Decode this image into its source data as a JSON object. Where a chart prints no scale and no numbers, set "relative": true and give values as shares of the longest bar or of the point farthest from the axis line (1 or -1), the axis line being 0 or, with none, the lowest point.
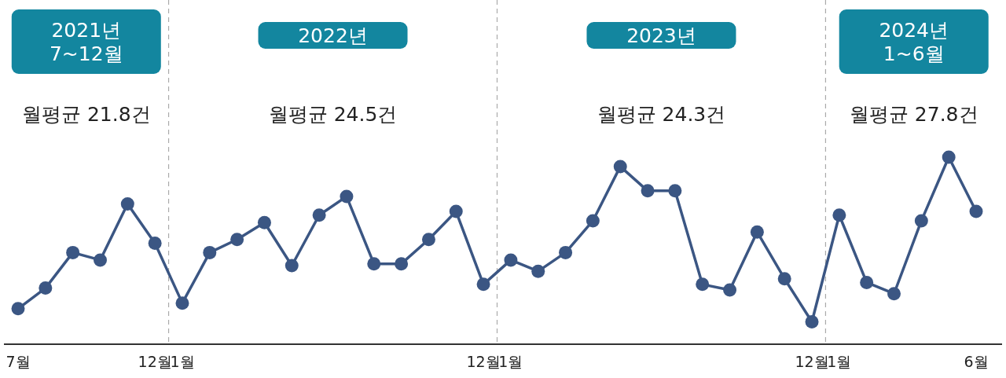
{
  "chart_data": {
    "type": "line",
    "relative": true,
    "color": "#3b5683",
    "marker": "circle",
    "line_style": "solid",
    "categories": [
      "7월",
      null,
      null,
      null,
      null,
      "12월",
      "1월",
      null,
      null,
      null,
      null,
      null,
      null,
      null,
      null,
      null,
      null,
      "12월",
      "1월",
      null,
      null,
      null,
      null,
      null,
      null,
      null,
      null,
      null,
      null,
      "12월",
      "1월",
      null,
      null,
      null,
      null,
      "6월"
    ],
    "values": [
      0.19,
      0.3,
      0.49,
      0.45,
      0.75,
      0.54,
      0.22,
      0.49,
      0.56,
      0.65,
      0.42,
      0.69,
      0.79,
      0.43,
      0.43,
      0.56,
      0.71,
      0.32,
      0.45,
      0.39,
      0.49,
      0.66,
      0.95,
      0.82,
      0.82,
      0.32,
      0.29,
      0.6,
      0.35,
      0.12,
      0.69,
      0.33,
      0.27,
      0.66,
      1,
      0.71
    ],
    "annotations": [
      "2021년\n7~12월",
      "월평균 21.8건",
      "2022년",
      "월평균 24.5건",
      "2023년",
      "월평균 24.3건",
      "2024년\n1~6월",
      "월평균 27.8건"
    ]
  }
}
